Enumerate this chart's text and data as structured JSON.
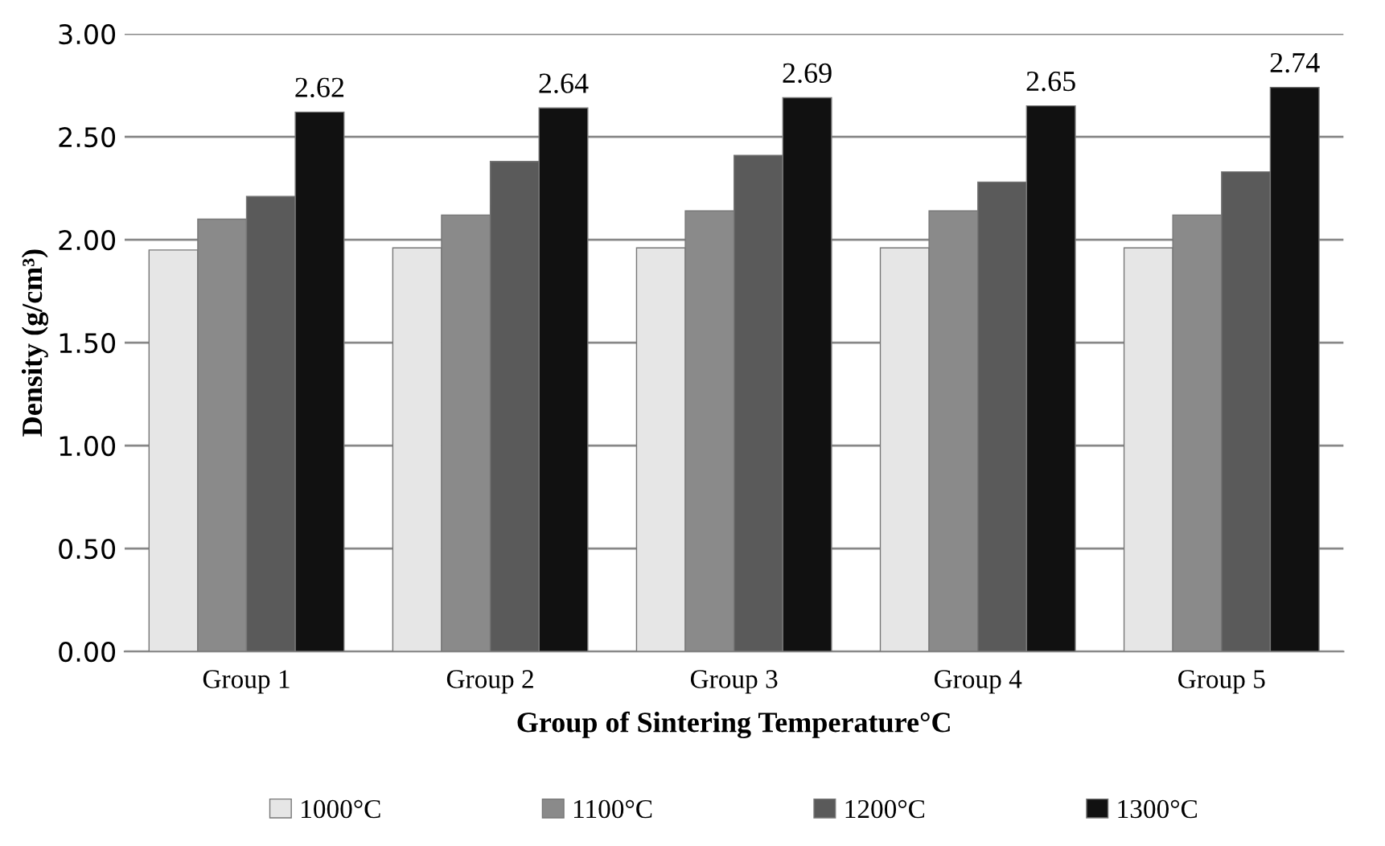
{
  "chart_data": {
    "type": "bar",
    "xlabel": "Group of Sintering Temperature°C",
    "ylabel": "Density (g/cm³)",
    "categories": [
      "Group 1",
      "Group 2",
      "Group 3",
      "Group 4",
      "Group 5"
    ],
    "series": [
      {
        "name": "1000°C",
        "color": "#e6e6e6",
        "values": [
          1.95,
          1.96,
          1.96,
          1.96,
          1.96
        ]
      },
      {
        "name": "1100°C",
        "color": "#8a8a8a",
        "values": [
          2.1,
          2.12,
          2.14,
          2.14,
          2.12
        ]
      },
      {
        "name": "1200°C",
        "color": "#5a5a5a",
        "values": [
          2.21,
          2.38,
          2.41,
          2.28,
          2.33
        ]
      },
      {
        "name": "1300°C",
        "color": "#111111",
        "values": [
          2.62,
          2.64,
          2.69,
          2.65,
          2.74
        ],
        "value_labels": [
          "2.62",
          "2.64",
          "2.69",
          "2.65",
          "2.74"
        ]
      }
    ],
    "ylim": [
      0,
      3
    ],
    "yticks": [
      {
        "value": 0,
        "label": "0.00"
      },
      {
        "value": 0.5,
        "label": "0.50"
      },
      {
        "value": 1,
        "label": "1.00"
      },
      {
        "value": 1.5,
        "label": "1.50"
      },
      {
        "value": 2,
        "label": "2.00"
      },
      {
        "value": 2.5,
        "label": "2.50"
      },
      {
        "value": 3,
        "label": "3.00"
      }
    ],
    "grid": "y",
    "legend": "bottom"
  }
}
